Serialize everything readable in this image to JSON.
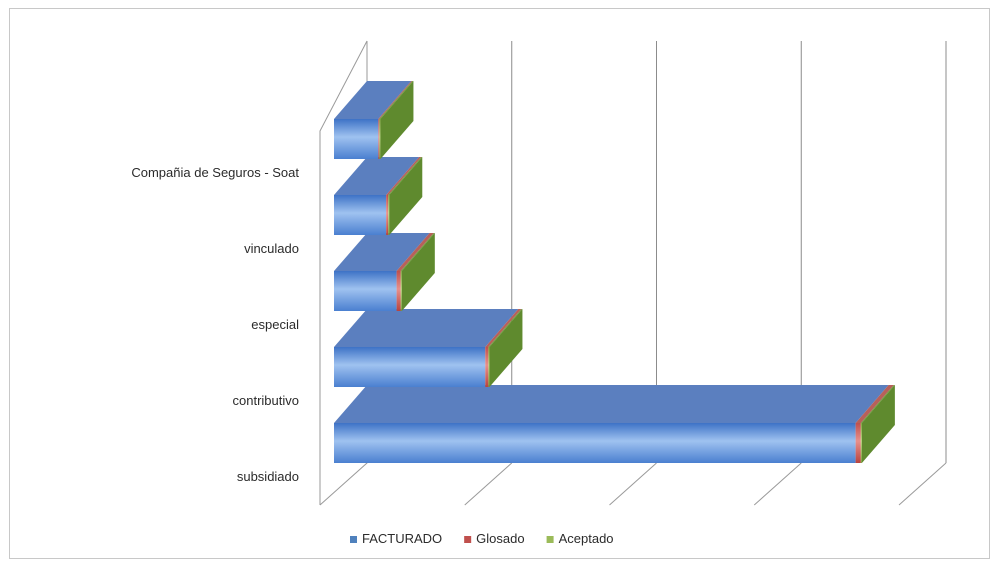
{
  "chart_data": {
    "type": "bar",
    "orientation": "horizontal",
    "style": "3d-stacked",
    "categories": [
      "subsidiado",
      "contributivo",
      "especial",
      "vinculado",
      "Compañia de Seguros - Soat"
    ],
    "series": [
      {
        "name": "FACTURADO",
        "values": [
          1000,
          290,
          120,
          100,
          85
        ]
      },
      {
        "name": "Glosado",
        "values": [
          10,
          6,
          8,
          4,
          2
        ]
      },
      {
        "name": "Aceptado",
        "values": [
          2,
          2,
          2,
          2,
          2
        ]
      }
    ],
    "xlim": [
      0,
      1110
    ],
    "grid": true,
    "show_value_tick_labels": false,
    "legend_position": "bottom",
    "colors": {
      "FACTURADO": "#4f81bd",
      "Glosado": "#c0504d",
      "Aceptado": "#9bbb59"
    }
  }
}
